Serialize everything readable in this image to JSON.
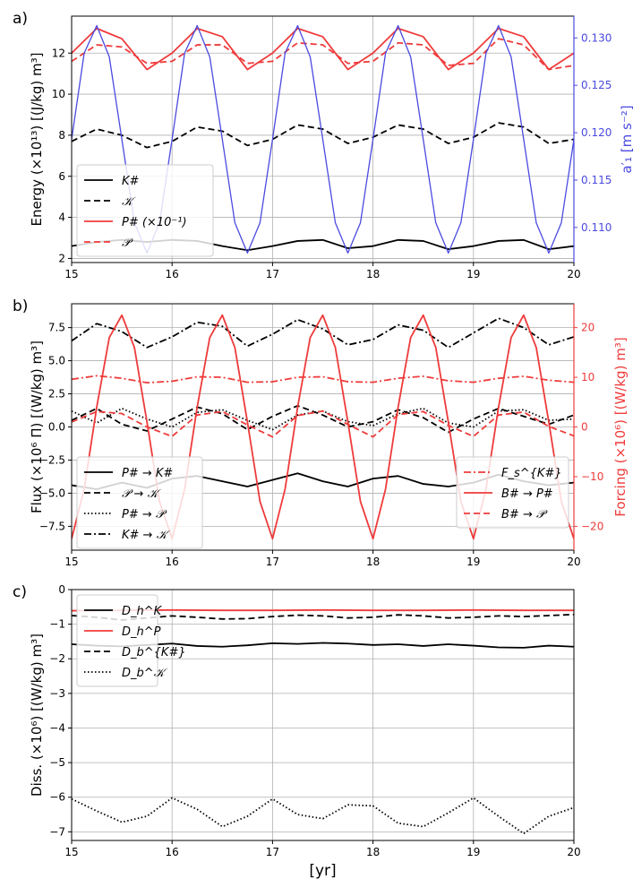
{
  "chart_data": [
    {
      "panel_label": "a)",
      "type": "line",
      "xlim": [
        15,
        20
      ],
      "x_ticks": [
        15,
        16,
        17,
        18,
        19,
        20
      ],
      "ylim": [
        1.8,
        13.8
      ],
      "y_ticks": [
        2,
        4,
        6,
        8,
        10,
        12
      ],
      "ylabel": "Energy (×10¹³) [(J/kg) m³]",
      "y2lim": [
        0.1063,
        0.1323
      ],
      "y2_ticks": [
        0.11,
        0.115,
        0.12,
        0.125,
        0.13
      ],
      "y2label": "a′₁ [m s⁻²]",
      "grid": true,
      "legend_position": "lower-left",
      "series": [
        {
          "name": "K#",
          "axis": "left",
          "style": "solid",
          "color": "#000000",
          "x": [
            15.0,
            15.25,
            15.5,
            15.75,
            16.0,
            16.25,
            16.5,
            16.75,
            17.0,
            17.25,
            17.5,
            17.75,
            18.0,
            18.25,
            18.5,
            18.75,
            19.0,
            19.25,
            19.5,
            19.75,
            20.0
          ],
          "values": [
            2.6,
            2.8,
            2.9,
            2.8,
            2.9,
            2.85,
            2.6,
            2.4,
            2.6,
            2.85,
            2.9,
            2.5,
            2.6,
            2.9,
            2.85,
            2.45,
            2.6,
            2.85,
            2.9,
            2.45,
            2.6
          ]
        },
        {
          "name": "𝒦",
          "axis": "left",
          "style": "dashed",
          "color": "#000000",
          "x": [
            15.0,
            15.25,
            15.5,
            15.75,
            16.0,
            16.25,
            16.5,
            16.75,
            17.0,
            17.25,
            17.5,
            17.75,
            18.0,
            18.25,
            18.5,
            18.75,
            19.0,
            19.25,
            19.5,
            19.75,
            20.0
          ],
          "values": [
            7.7,
            8.3,
            8.0,
            7.4,
            7.7,
            8.4,
            8.2,
            7.5,
            7.8,
            8.5,
            8.3,
            7.6,
            7.9,
            8.5,
            8.3,
            7.6,
            7.9,
            8.6,
            8.4,
            7.6,
            7.8
          ]
        },
        {
          "name": "P# (×10⁻¹)",
          "axis": "left",
          "style": "solid",
          "color": "#ef3b3b",
          "x": [
            15.0,
            15.25,
            15.5,
            15.75,
            16.0,
            16.25,
            16.5,
            16.75,
            17.0,
            17.25,
            17.5,
            17.75,
            18.0,
            18.25,
            18.5,
            18.75,
            19.0,
            19.25,
            19.5,
            19.75,
            20.0
          ],
          "values": [
            12.0,
            13.2,
            12.7,
            11.2,
            12.0,
            13.2,
            12.8,
            11.2,
            12.0,
            13.2,
            12.8,
            11.2,
            12.0,
            13.2,
            12.8,
            11.2,
            12.0,
            13.2,
            12.8,
            11.2,
            12.0
          ]
        },
        {
          "name": "𝒫",
          "axis": "left",
          "style": "dashed",
          "color": "#ef3b3b",
          "x": [
            15.0,
            15.25,
            15.5,
            15.75,
            16.0,
            16.25,
            16.5,
            16.75,
            17.0,
            17.25,
            17.5,
            17.75,
            18.0,
            18.25,
            18.5,
            18.75,
            19.0,
            19.25,
            19.5,
            19.75,
            20.0
          ],
          "values": [
            11.6,
            12.4,
            12.3,
            11.5,
            11.6,
            12.4,
            12.4,
            11.5,
            11.6,
            12.5,
            12.4,
            11.5,
            11.6,
            12.5,
            12.4,
            11.4,
            11.5,
            12.7,
            12.4,
            11.2,
            11.4
          ]
        },
        {
          "name": "a′₁",
          "axis": "right",
          "style": "solid",
          "color": "#4a4ae0",
          "x": [
            15.0,
            15.125,
            15.25,
            15.375,
            15.5,
            15.625,
            15.75,
            15.875,
            16.0,
            16.125,
            16.25,
            16.375,
            16.5,
            16.625,
            16.75,
            16.875,
            17.0,
            17.125,
            17.25,
            17.375,
            17.5,
            17.625,
            17.75,
            17.875,
            18.0,
            18.125,
            18.25,
            18.375,
            18.5,
            18.625,
            18.75,
            18.875,
            19.0,
            19.125,
            19.25,
            19.375,
            19.5,
            19.625,
            19.75,
            19.875,
            20.0
          ],
          "values": [
            0.1193,
            0.1284,
            0.1313,
            0.128,
            0.1193,
            0.1105,
            0.1073,
            0.1105,
            0.1193,
            0.1284,
            0.1313,
            0.128,
            0.1193,
            0.1105,
            0.1073,
            0.1105,
            0.1193,
            0.1284,
            0.1313,
            0.128,
            0.1193,
            0.1105,
            0.1073,
            0.1105,
            0.1193,
            0.1284,
            0.1313,
            0.128,
            0.1193,
            0.1105,
            0.1073,
            0.1105,
            0.1193,
            0.1284,
            0.1313,
            0.128,
            0.1193,
            0.1105,
            0.1073,
            0.1105,
            0.1193
          ]
        }
      ]
    },
    {
      "panel_label": "b)",
      "type": "line",
      "xlim": [
        15,
        20
      ],
      "x_ticks": [
        15,
        16,
        17,
        18,
        19,
        20
      ],
      "ylim": [
        -9.3,
        9.3
      ],
      "y_ticks": [
        -7.5,
        -5.0,
        -2.5,
        0.0,
        2.5,
        5.0,
        7.5
      ],
      "y_tick_labels": [
        "−7.5",
        "−5.0",
        "−2.5",
        "0.0",
        "2.5",
        "5.0",
        "7.5"
      ],
      "ylabel": "Flux (×10⁶ Π) [(W/kg) m³]",
      "y2lim": [
        -24.8,
        24.8
      ],
      "y2_ticks": [
        -20,
        -10,
        0,
        10,
        20
      ],
      "y2_tick_labels": [
        "−20",
        "−10",
        "0",
        "10",
        "20"
      ],
      "y2label": "Forcing (×10⁶) [(W/kg) m³]",
      "grid": true,
      "legend_position": "lower-left and lower-right",
      "series": [
        {
          "name": "P# → K#",
          "axis": "left",
          "style": "solid",
          "color": "#000000",
          "x": [
            15.0,
            15.25,
            15.5,
            15.75,
            16.0,
            16.25,
            16.5,
            16.75,
            17.0,
            17.25,
            17.5,
            17.75,
            18.0,
            18.25,
            18.5,
            18.75,
            19.0,
            19.25,
            19.5,
            19.75,
            20.0
          ],
          "values": [
            -4.4,
            -4.7,
            -4.2,
            -4.6,
            -3.9,
            -3.7,
            -4.1,
            -4.5,
            -4.0,
            -3.5,
            -4.1,
            -4.5,
            -3.9,
            -3.7,
            -4.3,
            -4.5,
            -4.2,
            -3.6,
            -4.1,
            -4.4,
            -4.2
          ]
        },
        {
          "name": "𝒫 → 𝒦",
          "axis": "left",
          "style": "dashed",
          "color": "#000000",
          "x": [
            15.0,
            15.25,
            15.5,
            15.75,
            16.0,
            16.25,
            16.5,
            16.75,
            17.0,
            17.25,
            17.5,
            17.75,
            18.0,
            18.25,
            18.5,
            18.75,
            19.0,
            19.25,
            19.5,
            19.75,
            20.0
          ],
          "values": [
            0.5,
            1.4,
            0.2,
            -0.3,
            0.6,
            1.5,
            1.0,
            -0.2,
            0.8,
            1.6,
            0.9,
            0.0,
            0.4,
            1.3,
            0.7,
            -0.4,
            0.6,
            1.4,
            0.8,
            0.2,
            0.9
          ]
        },
        {
          "name": "P# → 𝒫",
          "axis": "left",
          "style": "dotted",
          "color": "#000000",
          "x": [
            15.0,
            15.25,
            15.5,
            15.75,
            16.0,
            16.25,
            16.5,
            16.75,
            17.0,
            17.25,
            17.5,
            17.75,
            18.0,
            18.25,
            18.5,
            18.75,
            19.0,
            19.25,
            19.5,
            19.75,
            20.0
          ],
          "values": [
            1.2,
            0.3,
            1.4,
            0.6,
            0.0,
            1.1,
            1.3,
            0.5,
            -0.2,
            0.9,
            1.2,
            0.4,
            0.1,
            1.0,
            1.4,
            0.3,
            0.0,
            1.2,
            1.3,
            0.5,
            0.6
          ]
        },
        {
          "name": "K# → 𝒦",
          "axis": "left",
          "style": "dashdot",
          "color": "#000000",
          "x": [
            15.0,
            15.25,
            15.5,
            15.75,
            16.0,
            16.25,
            16.5,
            16.75,
            17.0,
            17.25,
            17.5,
            17.75,
            18.0,
            18.25,
            18.5,
            18.75,
            19.0,
            19.25,
            19.5,
            19.75,
            20.0
          ],
          "values": [
            6.5,
            7.8,
            7.2,
            6.0,
            6.8,
            7.9,
            7.6,
            6.1,
            7.0,
            8.1,
            7.4,
            6.2,
            6.6,
            7.7,
            7.3,
            6.0,
            7.1,
            8.2,
            7.5,
            6.2,
            6.8
          ]
        },
        {
          "name": "F_s^{K#}",
          "axis": "right",
          "style": "dashdot",
          "color": "#ef3b3b",
          "x": [
            15.0,
            15.25,
            15.5,
            15.75,
            16.0,
            16.25,
            16.5,
            16.75,
            17.0,
            17.25,
            17.5,
            17.75,
            18.0,
            18.25,
            18.5,
            18.75,
            19.0,
            19.25,
            19.5,
            19.75,
            20.0
          ],
          "values": [
            9.6,
            10.3,
            9.8,
            8.9,
            9.2,
            10.1,
            10.0,
            9.0,
            9.1,
            10.0,
            10.1,
            9.1,
            9.0,
            9.8,
            10.2,
            9.3,
            9.0,
            9.8,
            10.2,
            9.4,
            9.0
          ]
        },
        {
          "name": "B# → P#",
          "axis": "right",
          "style": "solid",
          "color": "#ef3b3b",
          "x": [
            15.0,
            15.125,
            15.25,
            15.375,
            15.5,
            15.625,
            15.75,
            15.875,
            16.0,
            16.125,
            16.25,
            16.375,
            16.5,
            16.625,
            16.75,
            16.875,
            17.0,
            17.125,
            17.25,
            17.375,
            17.5,
            17.625,
            17.75,
            17.875,
            18.0,
            18.125,
            18.25,
            18.375,
            18.5,
            18.625,
            18.75,
            18.875,
            19.0,
            19.125,
            19.25,
            19.375,
            19.5,
            19.625,
            19.75,
            19.875,
            20.0
          ],
          "values": [
            -22.5,
            -12.5,
            4.0,
            18.0,
            22.5,
            16.0,
            1.0,
            -15.0,
            -22.5,
            -12.5,
            4.0,
            18.0,
            22.5,
            16.0,
            1.0,
            -15.0,
            -22.5,
            -12.5,
            4.0,
            18.0,
            22.5,
            16.0,
            1.0,
            -15.0,
            -22.5,
            -12.5,
            4.0,
            18.0,
            22.5,
            16.0,
            1.0,
            -15.0,
            -22.5,
            -12.5,
            4.0,
            18.0,
            22.5,
            16.0,
            1.0,
            -15.0,
            -22.5
          ]
        },
        {
          "name": "B# → 𝒫",
          "axis": "right",
          "style": "dashed",
          "color": "#ef3b3b",
          "x": [
            15.0,
            15.25,
            15.5,
            15.75,
            16.0,
            16.25,
            16.5,
            16.75,
            17.0,
            17.25,
            17.5,
            17.75,
            18.0,
            18.25,
            18.5,
            18.75,
            19.0,
            19.25,
            19.5,
            19.75,
            20.0
          ],
          "values": [
            1.0,
            3.1,
            2.7,
            0.0,
            -1.9,
            2.4,
            3.1,
            0.4,
            -2.0,
            2.3,
            3.2,
            0.5,
            -2.0,
            2.5,
            3.1,
            0.3,
            -1.9,
            2.4,
            3.0,
            0.1,
            -1.8
          ]
        }
      ]
    },
    {
      "panel_label": "c)",
      "type": "line",
      "xlim": [
        15,
        20
      ],
      "x_ticks": [
        15,
        16,
        17,
        18,
        19,
        20
      ],
      "ylim": [
        -7.25,
        0
      ],
      "y_ticks": [
        -7,
        -6,
        -5,
        -4,
        -3,
        -2,
        -1,
        0
      ],
      "y_tick_labels": [
        "−7",
        "−6",
        "−5",
        "−4",
        "−3",
        "−2",
        "−1",
        "0"
      ],
      "ylabel": "Diss. (×10⁶) [(W/kg) m³]",
      "xlabel": "[yr]",
      "grid": true,
      "legend_position": "upper-left",
      "series": [
        {
          "name": "D_h^K",
          "axis": "left",
          "style": "solid",
          "color": "#000000",
          "x": [
            15.0,
            15.25,
            15.5,
            15.75,
            16.0,
            16.25,
            16.5,
            16.75,
            17.0,
            17.25,
            17.5,
            17.75,
            18.0,
            18.25,
            18.5,
            18.75,
            19.0,
            19.25,
            19.5,
            19.75,
            20.0
          ],
          "values": [
            -1.58,
            -1.62,
            -1.64,
            -1.6,
            -1.56,
            -1.63,
            -1.65,
            -1.61,
            -1.55,
            -1.57,
            -1.54,
            -1.56,
            -1.6,
            -1.58,
            -1.63,
            -1.58,
            -1.62,
            -1.67,
            -1.68,
            -1.62,
            -1.65
          ]
        },
        {
          "name": "D_h^P",
          "axis": "left",
          "style": "solid",
          "color": "#ef3b3b",
          "x": [
            15.0,
            15.5,
            16.0,
            16.5,
            17.0,
            17.5,
            18.0,
            18.5,
            19.0,
            19.5,
            20.0
          ],
          "values": [
            -0.61,
            -0.6,
            -0.59,
            -0.6,
            -0.6,
            -0.59,
            -0.6,
            -0.6,
            -0.59,
            -0.6,
            -0.6
          ]
        },
        {
          "name": "D_b^{K#}",
          "axis": "left",
          "style": "dashed",
          "color": "#000000",
          "x": [
            15.0,
            15.25,
            15.5,
            15.75,
            16.0,
            16.25,
            16.5,
            16.75,
            17.0,
            17.25,
            17.5,
            17.75,
            18.0,
            18.25,
            18.5,
            18.75,
            19.0,
            19.25,
            19.5,
            19.75,
            20.0
          ],
          "values": [
            -0.75,
            -0.8,
            -0.88,
            -0.82,
            -0.76,
            -0.8,
            -0.85,
            -0.84,
            -0.78,
            -0.74,
            -0.76,
            -0.82,
            -0.8,
            -0.73,
            -0.76,
            -0.82,
            -0.8,
            -0.76,
            -0.78,
            -0.75,
            -0.72
          ]
        },
        {
          "name": "D_b^𝒦",
          "axis": "left",
          "style": "dotted",
          "color": "#000000",
          "x": [
            15.0,
            15.25,
            15.5,
            15.75,
            16.0,
            16.25,
            16.5,
            16.75,
            17.0,
            17.25,
            17.5,
            17.75,
            18.0,
            18.25,
            18.5,
            18.75,
            19.0,
            19.25,
            19.5,
            19.75,
            20.0
          ],
          "values": [
            -6.05,
            -6.4,
            -6.72,
            -6.55,
            -6.02,
            -6.35,
            -6.85,
            -6.55,
            -6.05,
            -6.5,
            -6.62,
            -6.22,
            -6.25,
            -6.75,
            -6.85,
            -6.45,
            -6.02,
            -6.55,
            -7.05,
            -6.55,
            -6.3
          ]
        }
      ]
    }
  ]
}
